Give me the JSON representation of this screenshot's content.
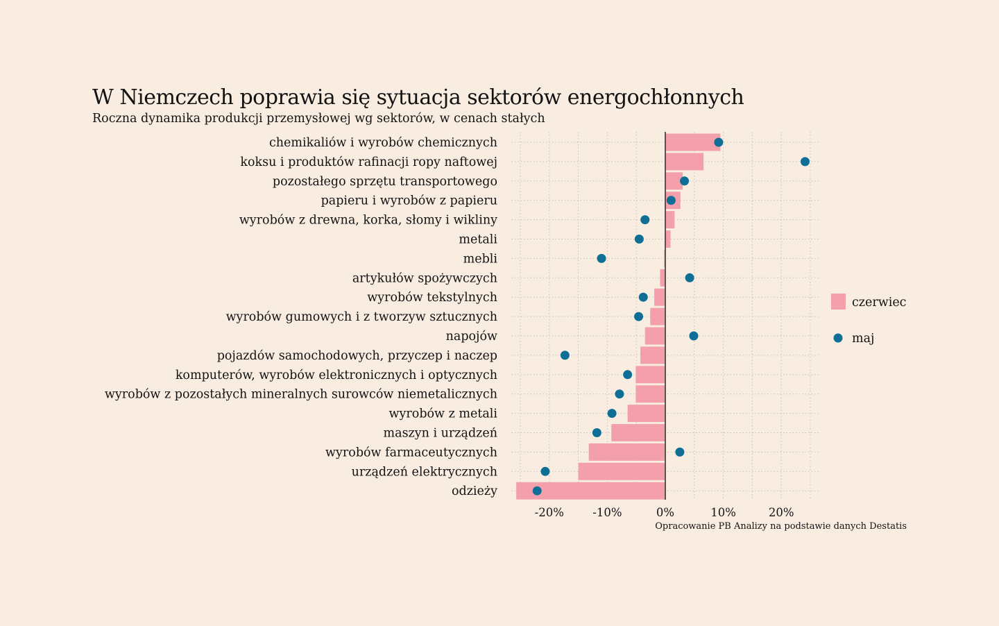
{
  "chart_data": {
    "type": "bar",
    "title": "W Niemczech poprawia się sytuacja sektorów energochłonnych",
    "subtitle": "Roczna dynamika produkcji przemysłowej wg sektorów, w cenach stałych",
    "caption": "Opracowanie PB Analizy na podstawie danych Destatis",
    "categories": [
      "chemikaliów i wyrobów chemicznych",
      "koksu i produktów rafinacji ropy naftowej",
      "pozostałego sprzętu transportowego",
      "papieru i wyrobów z papieru",
      "wyrobów z drewna, korka, słomy i wikliny",
      "metali",
      "mebli",
      "artykułów spożywczych",
      "wyrobów tekstylnych",
      "wyrobów gumowych i z tworzyw sztucznych",
      "napojów",
      "pojazdów samochodowych, przyczep i naczep",
      "komputerów, wyrobów elektronicznych i optycznych",
      "wyrobów z pozostałych mineralnych surowców niemetalicznych",
      "wyrobów z metali",
      "maszyn i urządzeń",
      "wyrobów farmaceutycznych",
      "urządzeń elektrycznych",
      "odzieży"
    ],
    "series": [
      {
        "name": "czerwiec",
        "mark": "bar",
        "color": "#f4a0ac",
        "values": [
          9.5,
          6.6,
          3.0,
          2.6,
          1.6,
          0.9,
          -0.2,
          -0.9,
          -1.9,
          -2.6,
          -3.5,
          -4.3,
          -5.1,
          -5.1,
          -6.5,
          -9.3,
          -13.2,
          -15.0,
          -25.7
        ]
      },
      {
        "name": "maj",
        "mark": "point",
        "color": "#0e6e96",
        "values": [
          9.2,
          24.1,
          3.3,
          1.0,
          -3.5,
          -4.5,
          -11.0,
          4.2,
          -3.8,
          -4.6,
          4.9,
          -17.3,
          -6.5,
          -7.9,
          -9.2,
          -11.8,
          2.5,
          -20.7,
          -22.1
        ]
      }
    ],
    "x_ticks": [
      "-20%",
      "-10%",
      "0%",
      "10%",
      "20%"
    ],
    "x_tick_values": [
      -20,
      -10,
      0,
      10,
      20
    ],
    "xlim": [
      -26.5,
      26.5
    ],
    "legend_position": "right",
    "grid": true
  }
}
